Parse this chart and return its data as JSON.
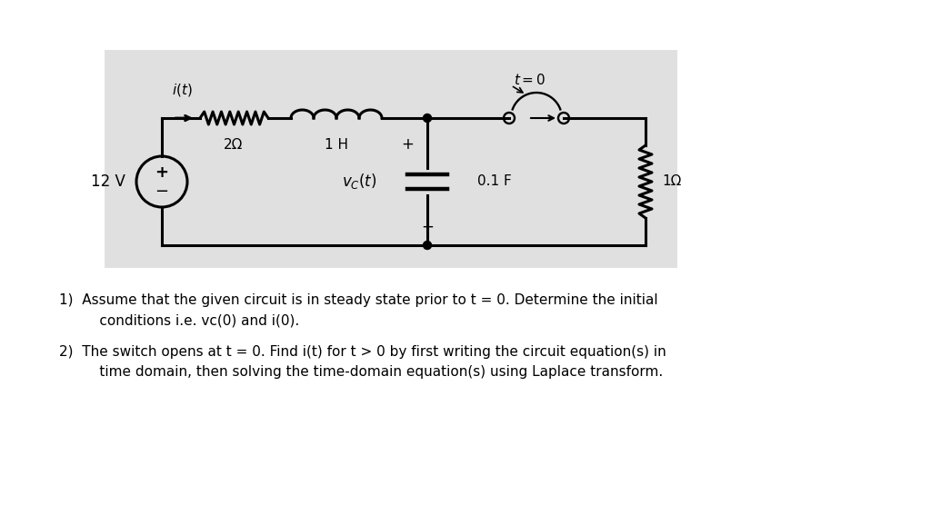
{
  "background_color": "#ffffff",
  "circuit_bg_color": "#e0e0e0",
  "line_color": "#000000",
  "line_width": 2.2,
  "text1_line1": "1)  Assume that the given circuit is in steady state prior to t = 0. Determine the initial",
  "text1_line2": "     conditions i.e. vᴄ(0) and i(0).",
  "text2_line1": "2)  The switch opens at t = 0. Find i(t) for t > 0 by first writing the circuit equation(s) in",
  "text2_line2": "     time domain, then solving the time-domain equation(s) using Laplace transform."
}
